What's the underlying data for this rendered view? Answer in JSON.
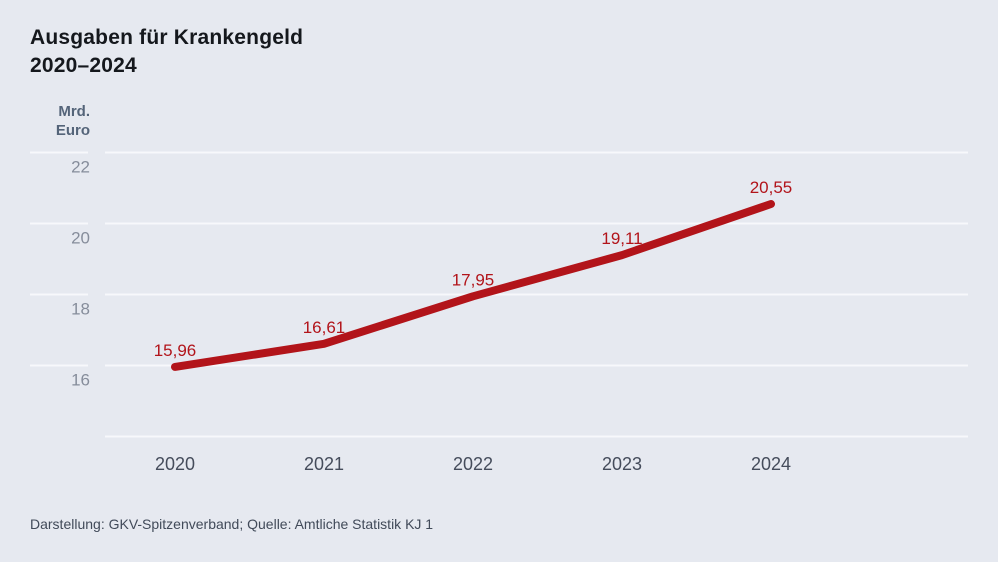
{
  "title": {
    "line1": "Ausgaben für Krankengeld",
    "line2": "2020–2024"
  },
  "y_axis_unit": {
    "line1": "Mrd.",
    "line2": "Euro"
  },
  "source": "Darstellung: GKV-Spitzenverband; Quelle: Amtliche Statistik KJ 1",
  "colors": {
    "background": "#e6e9f0",
    "gridline": "#f7f8fb",
    "series": "#b2141a",
    "point_label": "#b2141a",
    "y_tick_label": "#868d9b",
    "x_tick_label": "#454c5b",
    "title": "#15181d",
    "unit_label": "#546479",
    "source": "#414a59"
  },
  "chart_data": {
    "type": "line",
    "title": "Ausgaben für Krankengeld 2020–2024",
    "ylabel": "Mrd. Euro",
    "x": [
      "2020",
      "2021",
      "2022",
      "2023",
      "2024"
    ],
    "values": [
      15.96,
      16.61,
      17.95,
      19.11,
      20.55
    ],
    "point_labels": [
      "15,96",
      "16,61",
      "17,95",
      "19,11",
      "20,55"
    ],
    "yticks": [
      16,
      18,
      20,
      22
    ],
    "ylim": [
      14,
      22.4
    ],
    "grid": true,
    "legend": "none",
    "line_color": "#b2141a"
  }
}
